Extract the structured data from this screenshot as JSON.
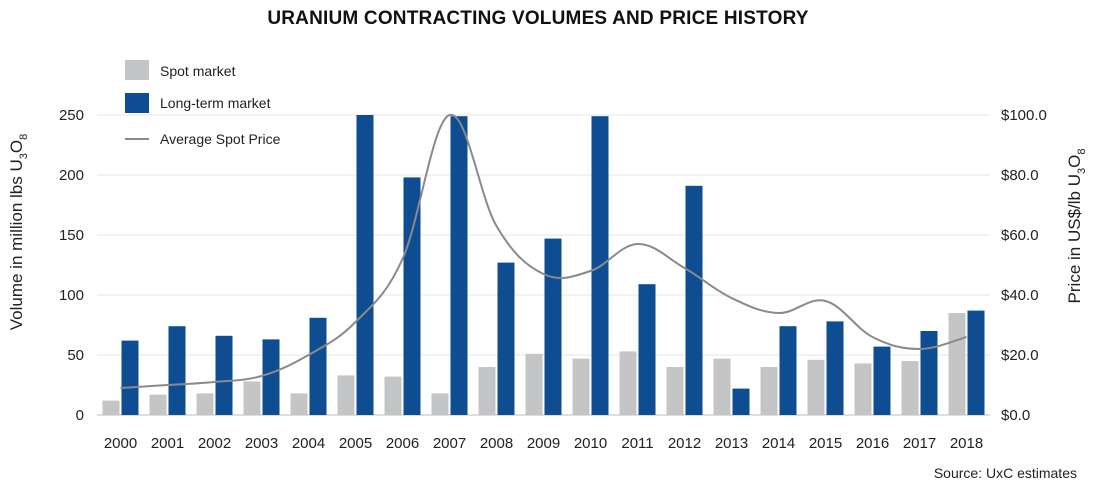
{
  "chart_data": {
    "type": "bar",
    "title": "URANIUM CONTRACTING VOLUMES AND PRICE HISTORY",
    "source": "Source: UxC estimates",
    "categories": [
      "2000",
      "2001",
      "2002",
      "2003",
      "2004",
      "2005",
      "2006",
      "2007",
      "2008",
      "2009",
      "2010",
      "2011",
      "2012",
      "2013",
      "2014",
      "2015",
      "2016",
      "2017",
      "2018"
    ],
    "series": [
      {
        "name": "Spot market",
        "kind": "bar",
        "axis": "left",
        "color": "#c4c5c7",
        "values": [
          12,
          17,
          18,
          28,
          18,
          33,
          32,
          18,
          40,
          51,
          47,
          53,
          40,
          47,
          40,
          46,
          43,
          45,
          85
        ]
      },
      {
        "name": "Long-term market",
        "kind": "bar",
        "axis": "left",
        "color": "#0e4d92",
        "values": [
          62,
          74,
          66,
          63,
          81,
          250,
          198,
          249,
          127,
          147,
          249,
          109,
          191,
          22,
          74,
          78,
          57,
          70,
          87
        ]
      },
      {
        "name": "Average Spot Price",
        "kind": "line",
        "axis": "right",
        "color": "#8a8a8a",
        "values": [
          9,
          10,
          11,
          13,
          20,
          31,
          52,
          100,
          63,
          47,
          48,
          57,
          49,
          39,
          34,
          38,
          26,
          22,
          26
        ]
      }
    ],
    "ylabel_left": {
      "base": "Volume in million lbs U",
      "sub1": "3",
      "mid": "O",
      "sub2": "8"
    },
    "ylabel_right": {
      "base": "Price in US$/lb U",
      "sub1": "3",
      "mid": "O",
      "sub2": "8"
    },
    "ylim_left": [
      0,
      250
    ],
    "ylim_right": [
      0,
      100
    ],
    "yticks_left": [
      "0",
      "50",
      "100",
      "150",
      "200",
      "250"
    ],
    "yticks_right": [
      "$0.0",
      "$20.0",
      "$40.0",
      "$60.0",
      "$80.0",
      "$100.0"
    ],
    "grid": true,
    "legend_position": "top-left"
  }
}
